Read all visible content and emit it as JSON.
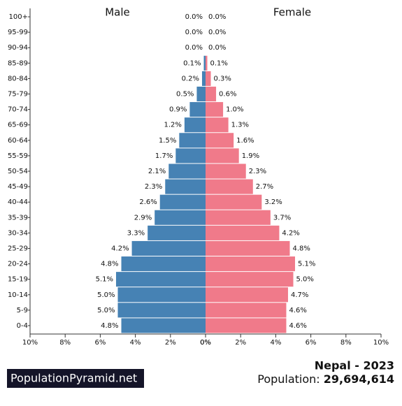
{
  "chart_data": {
    "type": "pyramid",
    "categories": [
      "100+",
      "95-99",
      "90-94",
      "85-89",
      "80-84",
      "75-79",
      "70-74",
      "65-69",
      "60-64",
      "55-59",
      "50-54",
      "45-49",
      "40-44",
      "35-39",
      "30-34",
      "25-29",
      "20-24",
      "15-19",
      "10-14",
      "5-9",
      "0-4"
    ],
    "series": [
      {
        "name": "Male",
        "color": "#4682b4",
        "values": [
          0.0,
          0.0,
          0.0,
          0.1,
          0.2,
          0.5,
          0.9,
          1.2,
          1.5,
          1.7,
          2.1,
          2.3,
          2.6,
          2.9,
          3.3,
          4.2,
          4.8,
          5.1,
          5.0,
          5.0,
          4.8
        ],
        "value_labels": [
          "0.0%",
          "0.0%",
          "0.0%",
          "0.1%",
          "0.2%",
          "0.5%",
          "0.9%",
          "1.2%",
          "1.5%",
          "1.7%",
          "2.1%",
          "2.3%",
          "2.6%",
          "2.9%",
          "3.3%",
          "4.2%",
          "4.8%",
          "5.1%",
          "5.0%",
          "5.0%",
          "4.8%"
        ]
      },
      {
        "name": "Female",
        "color": "#f07a8a",
        "values": [
          0.0,
          0.0,
          0.0,
          0.1,
          0.3,
          0.6,
          1.0,
          1.3,
          1.6,
          1.9,
          2.3,
          2.7,
          3.2,
          3.7,
          4.2,
          4.8,
          5.1,
          5.0,
          4.7,
          4.6,
          4.6
        ],
        "value_labels": [
          "0.0%",
          "0.0%",
          "0.0%",
          "0.1%",
          "0.3%",
          "0.6%",
          "1.0%",
          "1.3%",
          "1.6%",
          "1.9%",
          "2.3%",
          "2.7%",
          "3.2%",
          "3.7%",
          "4.2%",
          "4.8%",
          "5.1%",
          "5.0%",
          "4.7%",
          "4.6%",
          "4.6%"
        ]
      }
    ],
    "xlim": [
      0,
      10
    ],
    "xticks": [
      {
        "value": 0,
        "label": "0%"
      },
      {
        "value": 2,
        "label": "2%"
      },
      {
        "value": 4,
        "label": "4%"
      },
      {
        "value": 6,
        "label": "6%"
      },
      {
        "value": 8,
        "label": "8%"
      },
      {
        "value": 10,
        "label": "10%"
      }
    ]
  },
  "footer": {
    "brand": "PopulationPyramid.net",
    "title": "Nepal - 2023",
    "population_label": "Population:",
    "population": "29,694,614"
  }
}
